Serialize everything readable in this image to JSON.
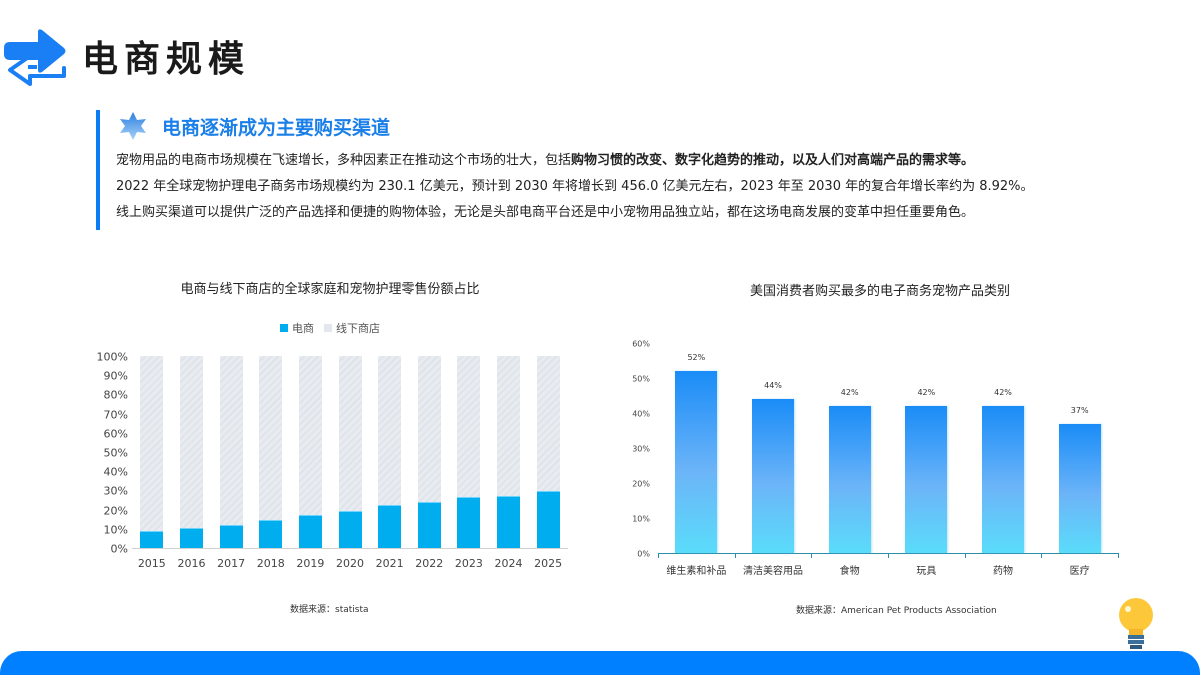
{
  "header": {
    "title": "电商规模",
    "icon": "swap-arrows-icon",
    "accent_color": "#1a7ff5"
  },
  "intro": {
    "icon": "star-icon",
    "title": "电商逐渐成为主要购买渠道",
    "title_color": "#1a7fe8",
    "line1_plain": "宠物用品的电商市场规模在飞速增长，多种因素正在推动这个市场的壮大，包括",
    "line1_bold": "购物习惯的改变、数字化趋势的推动，以及人们对高端产品的需求等。",
    "line2": "2022 年全球宠物护理电子商务市场规模约为 230.1 亿美元，预计到 2030 年将增长到 456.0 亿美元左右，2023 年至 2030 年的复合年增长率约为 8.92%。",
    "line3": "线上购买渠道可以提供广泛的产品选择和便捷的购物体验，无论是头部电商平台还是中小宠物用品独立站，都在这场电商发展的变革中担任重要角色。"
  },
  "chart_data": [
    {
      "type": "bar",
      "stacked": true,
      "title": "电商与线下商店的全球家庭和宠物护理零售份额占比",
      "categories": [
        "2015",
        "2016",
        "2017",
        "2018",
        "2019",
        "2020",
        "2021",
        "2022",
        "2023",
        "2024",
        "2025"
      ],
      "series": [
        {
          "name": "电商",
          "color": "#00adef",
          "values": [
            9,
            10.5,
            12,
            14.5,
            17,
            19.5,
            22.5,
            24,
            26.5,
            27,
            29.5
          ]
        },
        {
          "name": "线下商店",
          "color": "#e4e7ed",
          "values": [
            91,
            89.5,
            88,
            85.5,
            83,
            80.5,
            77.5,
            76,
            73.5,
            73,
            70.5
          ]
        }
      ],
      "yticks": [
        "0%",
        "10%",
        "20%",
        "30%",
        "40%",
        "50%",
        "60%",
        "70%",
        "80%",
        "90%",
        "100%"
      ],
      "ylim": [
        0,
        100
      ],
      "xlabel": "",
      "ylabel": "",
      "legend_position": "top",
      "grid": false,
      "source": "数据来源：statista"
    },
    {
      "type": "bar",
      "title": "美国消费者购买最多的电子商务宠物产品类别",
      "categories": [
        "维生素和补品",
        "清洁美容用品",
        "食物",
        "玩具",
        "药物",
        "医疗"
      ],
      "values": [
        52,
        44,
        42,
        42,
        42,
        37
      ],
      "value_labels": [
        "52%",
        "44%",
        "42%",
        "42%",
        "42%",
        "37%"
      ],
      "yticks": [
        "0%",
        "10%",
        "20%",
        "30%",
        "40%",
        "50%",
        "60%"
      ],
      "ylim": [
        0,
        60
      ],
      "xlabel": "",
      "ylabel": "",
      "grid": false,
      "source": "数据来源：American Pet Products Association"
    }
  ],
  "decor": {
    "bulb_icon": "lightbulb-icon",
    "footer_color": "#0080ff"
  }
}
